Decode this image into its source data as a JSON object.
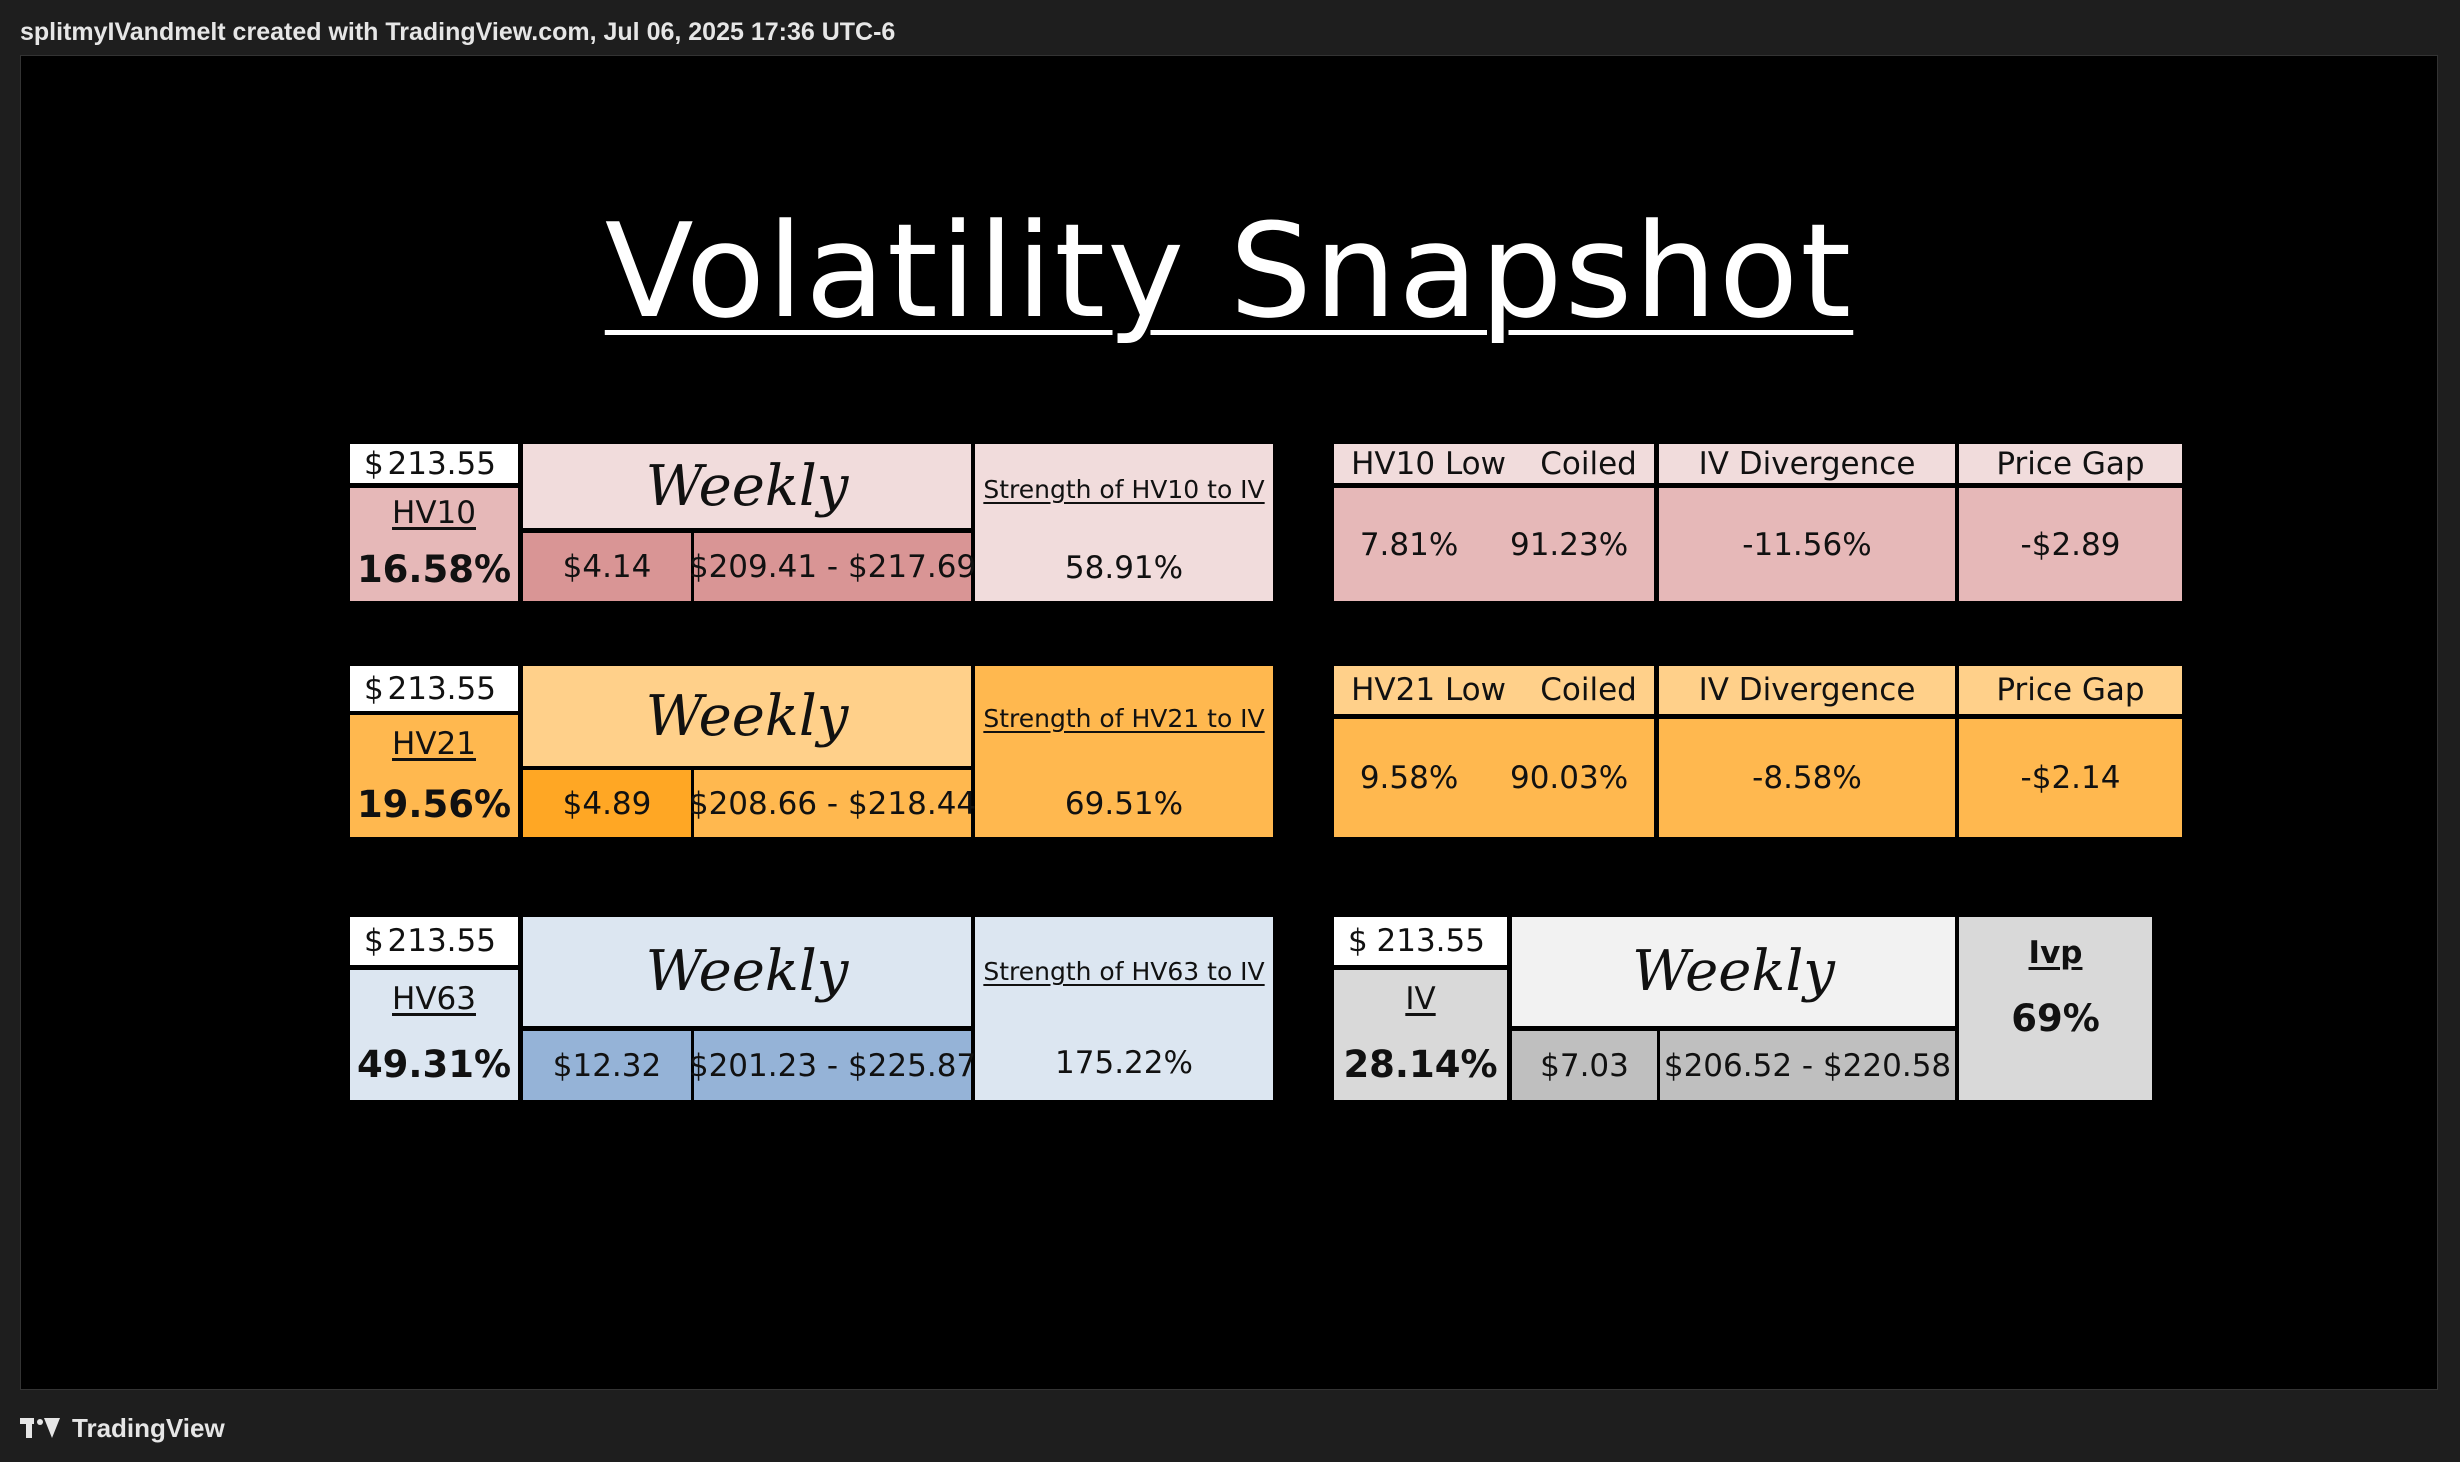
{
  "header": {
    "caption": "splitmyIVandmelt created with TradingView.com, Jul 06, 2025 17:36 UTC-6"
  },
  "footer": {
    "brand": "TradingView"
  },
  "title": "Volatility Snapshot",
  "colors": {
    "hv10_light": "#f1dcdc",
    "hv10_mid": "#e6b8b8",
    "hv10_dark": "#d99595",
    "hv21_light": "#ffd08a",
    "hv21_mid": "#ffb84f",
    "hv21_dark": "#ffa724",
    "hv63_light": "#dce6f1",
    "hv63_dark": "#95b3d7",
    "iv_light": "#f2f2f2",
    "iv_mid": "#d9d9d9",
    "iv_dark": "#bfbfbf"
  },
  "hv10": {
    "currency": "$",
    "price": "213.55",
    "label": "HV10",
    "value": "16.58%",
    "weekly": "Weekly",
    "move": "$4.14",
    "range": "$209.41 - $217.69",
    "strength_label": "Strength of HV10 to IV",
    "strength": "58.91%",
    "low_label": "HV10 Low",
    "coiled_label": "Coiled",
    "low": "7.81%",
    "coiled": "91.23%",
    "divergence_label": "IV Divergence",
    "divergence": "-11.56%",
    "gap_label": "Price Gap",
    "gap": "-$2.89"
  },
  "hv21": {
    "currency": "$",
    "price": "213.55",
    "label": "HV21",
    "value": "19.56%",
    "weekly": "Weekly",
    "move": "$4.89",
    "range": "$208.66 - $218.44",
    "strength_label": "Strength of HV21 to IV",
    "strength": "69.51%",
    "low_label": "HV21 Low",
    "coiled_label": "Coiled",
    "low": "9.58%",
    "coiled": "90.03%",
    "divergence_label": "IV Divergence",
    "divergence": "-8.58%",
    "gap_label": "Price Gap",
    "gap": "-$2.14"
  },
  "hv63": {
    "currency": "$",
    "price": "213.55",
    "label": "HV63",
    "value": "49.31%",
    "weekly": "Weekly",
    "move": "$12.32",
    "range": "$201.23 - $225.87",
    "strength_label": "Strength of HV63 to IV",
    "strength": "175.22%"
  },
  "iv": {
    "currency": "$",
    "price": "213.55",
    "label": "IV",
    "value": "28.14%",
    "weekly": "Weekly",
    "move": "$7.03",
    "range": "$206.52 - $220.58",
    "ivp_label": "Ivp",
    "ivp": "69%"
  }
}
